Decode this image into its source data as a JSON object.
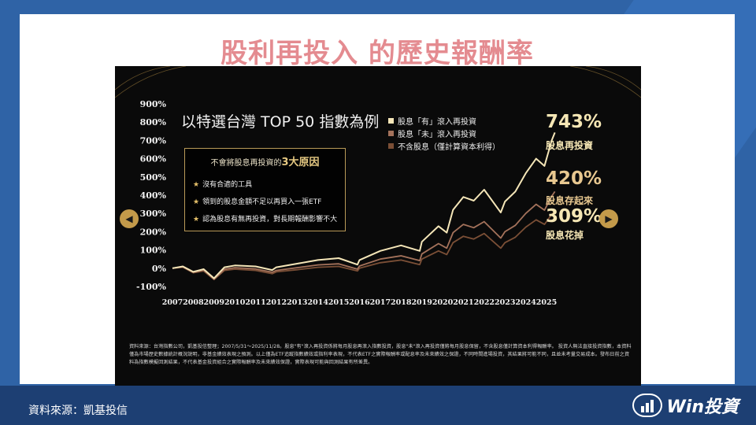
{
  "slide": {
    "title": "股利再投入 的歷史報酬率",
    "source": "資料來源：凱基投信",
    "logo_text": "Win投資",
    "nav_prev_icon": "chevron-left-icon",
    "nav_next_icon": "chevron-right-icon"
  },
  "chart_heading": "以特選台灣 TOP 50 指數為例",
  "reasons": {
    "title_prefix": "不會將股息再投資的",
    "title_highlight": "3大原因",
    "items": [
      "沒有合適的工具",
      "領到的股息金額不足以再買入一張ETF",
      "認為股息有無再投資，對長期報酬影響不大"
    ]
  },
  "end_labels": [
    {
      "value": "743%",
      "label": "股息再投資"
    },
    {
      "value": "420%",
      "label": "股息存起來"
    },
    {
      "value": "309%",
      "label": "股息花掉"
    }
  ],
  "footnote": "資料來源：台灣指數公司，凱基投信整理；2007/5/31～2025/11/28。股息\"有\"滾入再投資係將每月股息再滾入指數投資，股息\"未\"滾入再投資僅將每月股息保留，不含股息僅計算資本利得報酬率。 投資人無法直接投資指數，本資料僅為市場歷史數據統計概況說明，非基金績效表現之預測。以上僅為ETF追蹤指數績效或指利率表現，不代表ETF之實際報酬率或配息率及未來績效之保證，不同時間進場投資，其結果將可能不同，且並未考量交易成本。發布日前之資料為指數模擬回測結果，不代表基金投資組合之實際報酬率及未來績效保證，實際表現可能與回測結果有所差異。",
  "chart_data": {
    "type": "line",
    "x": [
      2007,
      2007.5,
      2008,
      2008.5,
      2009,
      2009.5,
      2010,
      2011,
      2011.8,
      2012,
      2013,
      2014,
      2015,
      2015.9,
      2016,
      2017,
      2018,
      2018.9,
      2019,
      2019.8,
      2020.2,
      2020.5,
      2021,
      2021.5,
      2022,
      2022.8,
      2023,
      2023.5,
      2024,
      2024.5,
      2024.9,
      2025.25,
      2025.4
    ],
    "x_ticks": [
      2007,
      2008,
      2009,
      2010,
      2011,
      2012,
      2013,
      2014,
      2015,
      2016,
      2017,
      2018,
      2019,
      2020,
      2021,
      2022,
      2023,
      2024,
      2025
    ],
    "y_ticks": [
      "900%",
      "800%",
      "700%",
      "600%",
      "500%",
      "400%",
      "300%",
      "200%",
      "100%",
      "0%",
      "-100%"
    ],
    "ylim": [
      -100,
      900
    ],
    "series": [
      {
        "name": "股息「有」滾入再投資",
        "color": "#f5e6b8",
        "values": [
          0,
          10,
          -20,
          -5,
          -55,
          5,
          15,
          10,
          -10,
          5,
          25,
          45,
          55,
          20,
          45,
          95,
          125,
          95,
          145,
          230,
          195,
          320,
          390,
          370,
          430,
          305,
          365,
          420,
          520,
          600,
          560,
          700,
          743
        ]
      },
      {
        "name": "股息「未」滾入再投資",
        "color": "#a4725b",
        "values": [
          0,
          8,
          -22,
          -10,
          -60,
          -5,
          3,
          -4,
          -22,
          -12,
          3,
          18,
          24,
          -5,
          12,
          50,
          68,
          42,
          78,
          135,
          110,
          195,
          240,
          222,
          255,
          165,
          200,
          235,
          300,
          350,
          318,
          395,
          420
        ]
      },
      {
        "name": "不含股息（僅計算資本利得）",
        "color": "#7b4f36",
        "values": [
          0,
          5,
          -25,
          -15,
          -62,
          -12,
          -5,
          -12,
          -30,
          -20,
          -8,
          5,
          10,
          -15,
          0,
          30,
          45,
          20,
          50,
          95,
          75,
          140,
          175,
          160,
          190,
          110,
          140,
          170,
          225,
          265,
          240,
          295,
          309
        ]
      }
    ]
  }
}
